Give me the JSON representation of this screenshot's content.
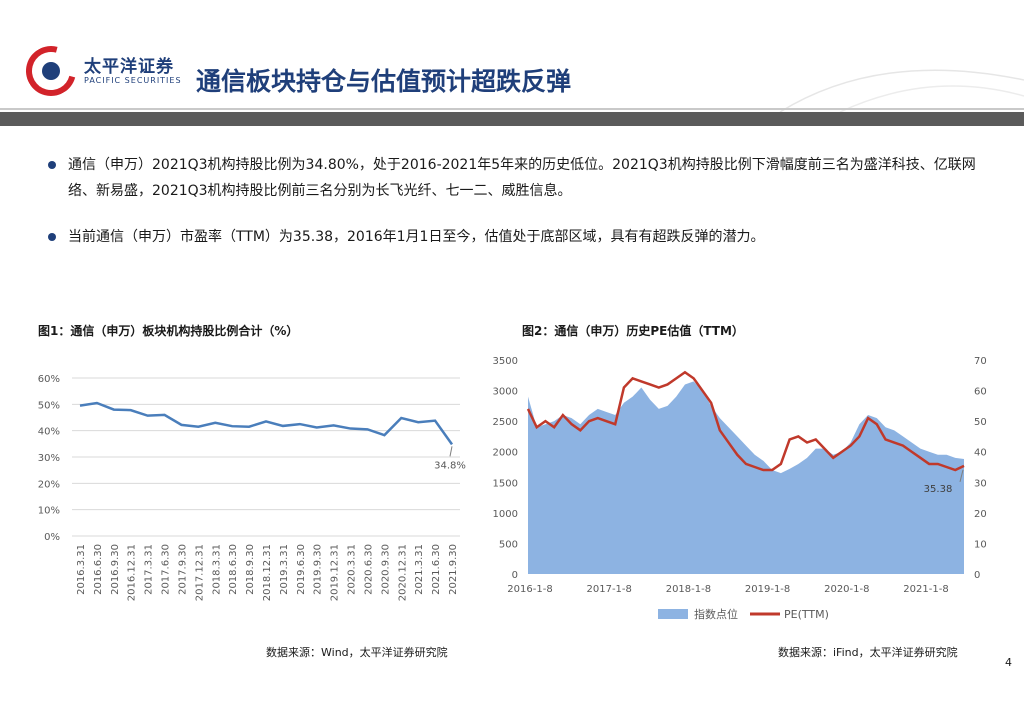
{
  "header": {
    "logo_cn": "太平洋证券",
    "logo_en": "PACIFIC SECURITIES",
    "title": "通信板块持仓与估值预计超跌反弹"
  },
  "bullets": [
    {
      "text": "通信（申万）2021Q3机构持股比例为34.80%，处于2016-2021年5年来的历史低位。2021Q3机构持股比例下滑幅度前三名为盛洋科技、亿联网络、新易盛，2021Q3机构持股比例前三名分别为长飞光纤、七一二、威胜信息。"
    },
    {
      "text": "当前通信（申万）市盈率（TTM）为35.38，2016年1月1日至今，估值处于底部区域，具有有超跌反弹的潜力。"
    }
  ],
  "figure1": {
    "title": "图1：通信（申万）板块机构持股比例合计（%）",
    "source": "数据来源：Wind，太平洋证券研究院"
  },
  "figure2": {
    "title": "图2：通信（申万）历史PE估值（TTM）",
    "source": "数据来源：iFind，太平洋证券研究院"
  },
  "page_number": "4",
  "colors": {
    "brand_blue": "#1f3f7a",
    "brand_red": "#d2232a",
    "line_blue": "#4a7ebb",
    "area_blue": "#8db3e2",
    "pe_red": "#c0392b"
  },
  "chart_data": [
    {
      "type": "line",
      "title": "图1：通信（申万）板块机构持股比例合计（%）",
      "categories": [
        "2016.3.31",
        "2016.6.30",
        "2016.9.30",
        "2016.12.31",
        "2017.3.31",
        "2017.6.30",
        "2017.9.30",
        "2017.12.31",
        "2018.3.31",
        "2018.6.30",
        "2018.9.30",
        "2018.12.31",
        "2019.3.31",
        "2019.6.30",
        "2019.9.30",
        "2019.12.31",
        "2020.3.31",
        "2020.6.30",
        "2020.9.30",
        "2020.12.31",
        "2021.3.31",
        "2021.6.30",
        "2021.9.30"
      ],
      "values": [
        49.5,
        50.5,
        48,
        47.8,
        45.7,
        46,
        42.2,
        41.5,
        43,
        41.7,
        41.5,
        43.5,
        41.8,
        42.5,
        41.2,
        42,
        40.8,
        40.5,
        38.3,
        44.8,
        43.2,
        43.8,
        34.8
      ],
      "yticks": [
        "0%",
        "10%",
        "20%",
        "30%",
        "40%",
        "50%",
        "60%"
      ],
      "ylim": [
        0,
        60
      ],
      "annotation": "34.8%",
      "grid": true
    },
    {
      "type": "area",
      "title": "图2：通信（申万）历史PE估值（TTM）",
      "x_ticks": [
        "2016-1-8",
        "2017-1-8",
        "2018-1-8",
        "2019-1-8",
        "2020-1-8",
        "2021-1-8"
      ],
      "left_yticks": [
        "0",
        "500",
        "1000",
        "1500",
        "2000",
        "2500",
        "3000",
        "3500"
      ],
      "right_yticks": [
        "0",
        "10",
        "20",
        "30",
        "40",
        "50",
        "60",
        "70"
      ],
      "left_ylim": [
        0,
        3500
      ],
      "right_ylim": [
        0,
        70
      ],
      "legend": [
        "指数点位",
        "PE(TTM)"
      ],
      "legend_position": "bottom",
      "annotation": "35.38",
      "series": [
        {
          "name": "指数点位",
          "axis": "left",
          "values": [
            2900,
            2400,
            2450,
            2500,
            2600,
            2550,
            2450,
            2600,
            2700,
            2650,
            2600,
            2800,
            2900,
            3050,
            2850,
            2700,
            2750,
            2900,
            3100,
            3150,
            3000,
            2750,
            2550,
            2400,
            2250,
            2100,
            1950,
            1850,
            1700,
            1650,
            1720,
            1800,
            1900,
            2050,
            2050,
            1950,
            2000,
            2150,
            2450,
            2600,
            2550,
            2400,
            2350,
            2250,
            2150,
            2050,
            2000,
            1950,
            1950,
            1900,
            1880
          ]
        },
        {
          "name": "PE(TTM)",
          "axis": "right",
          "values": [
            54,
            48,
            50,
            48,
            52,
            49,
            47,
            50,
            51,
            50,
            49,
            61,
            64,
            63,
            62,
            61,
            62,
            64,
            66,
            64,
            60,
            56,
            47,
            43,
            39,
            36,
            35,
            34,
            34,
            36,
            44,
            45,
            43,
            44,
            41,
            38,
            40,
            42,
            45,
            51,
            49,
            44,
            43,
            42,
            40,
            38,
            36,
            36,
            35,
            34,
            35.38
          ]
        }
      ]
    }
  ]
}
